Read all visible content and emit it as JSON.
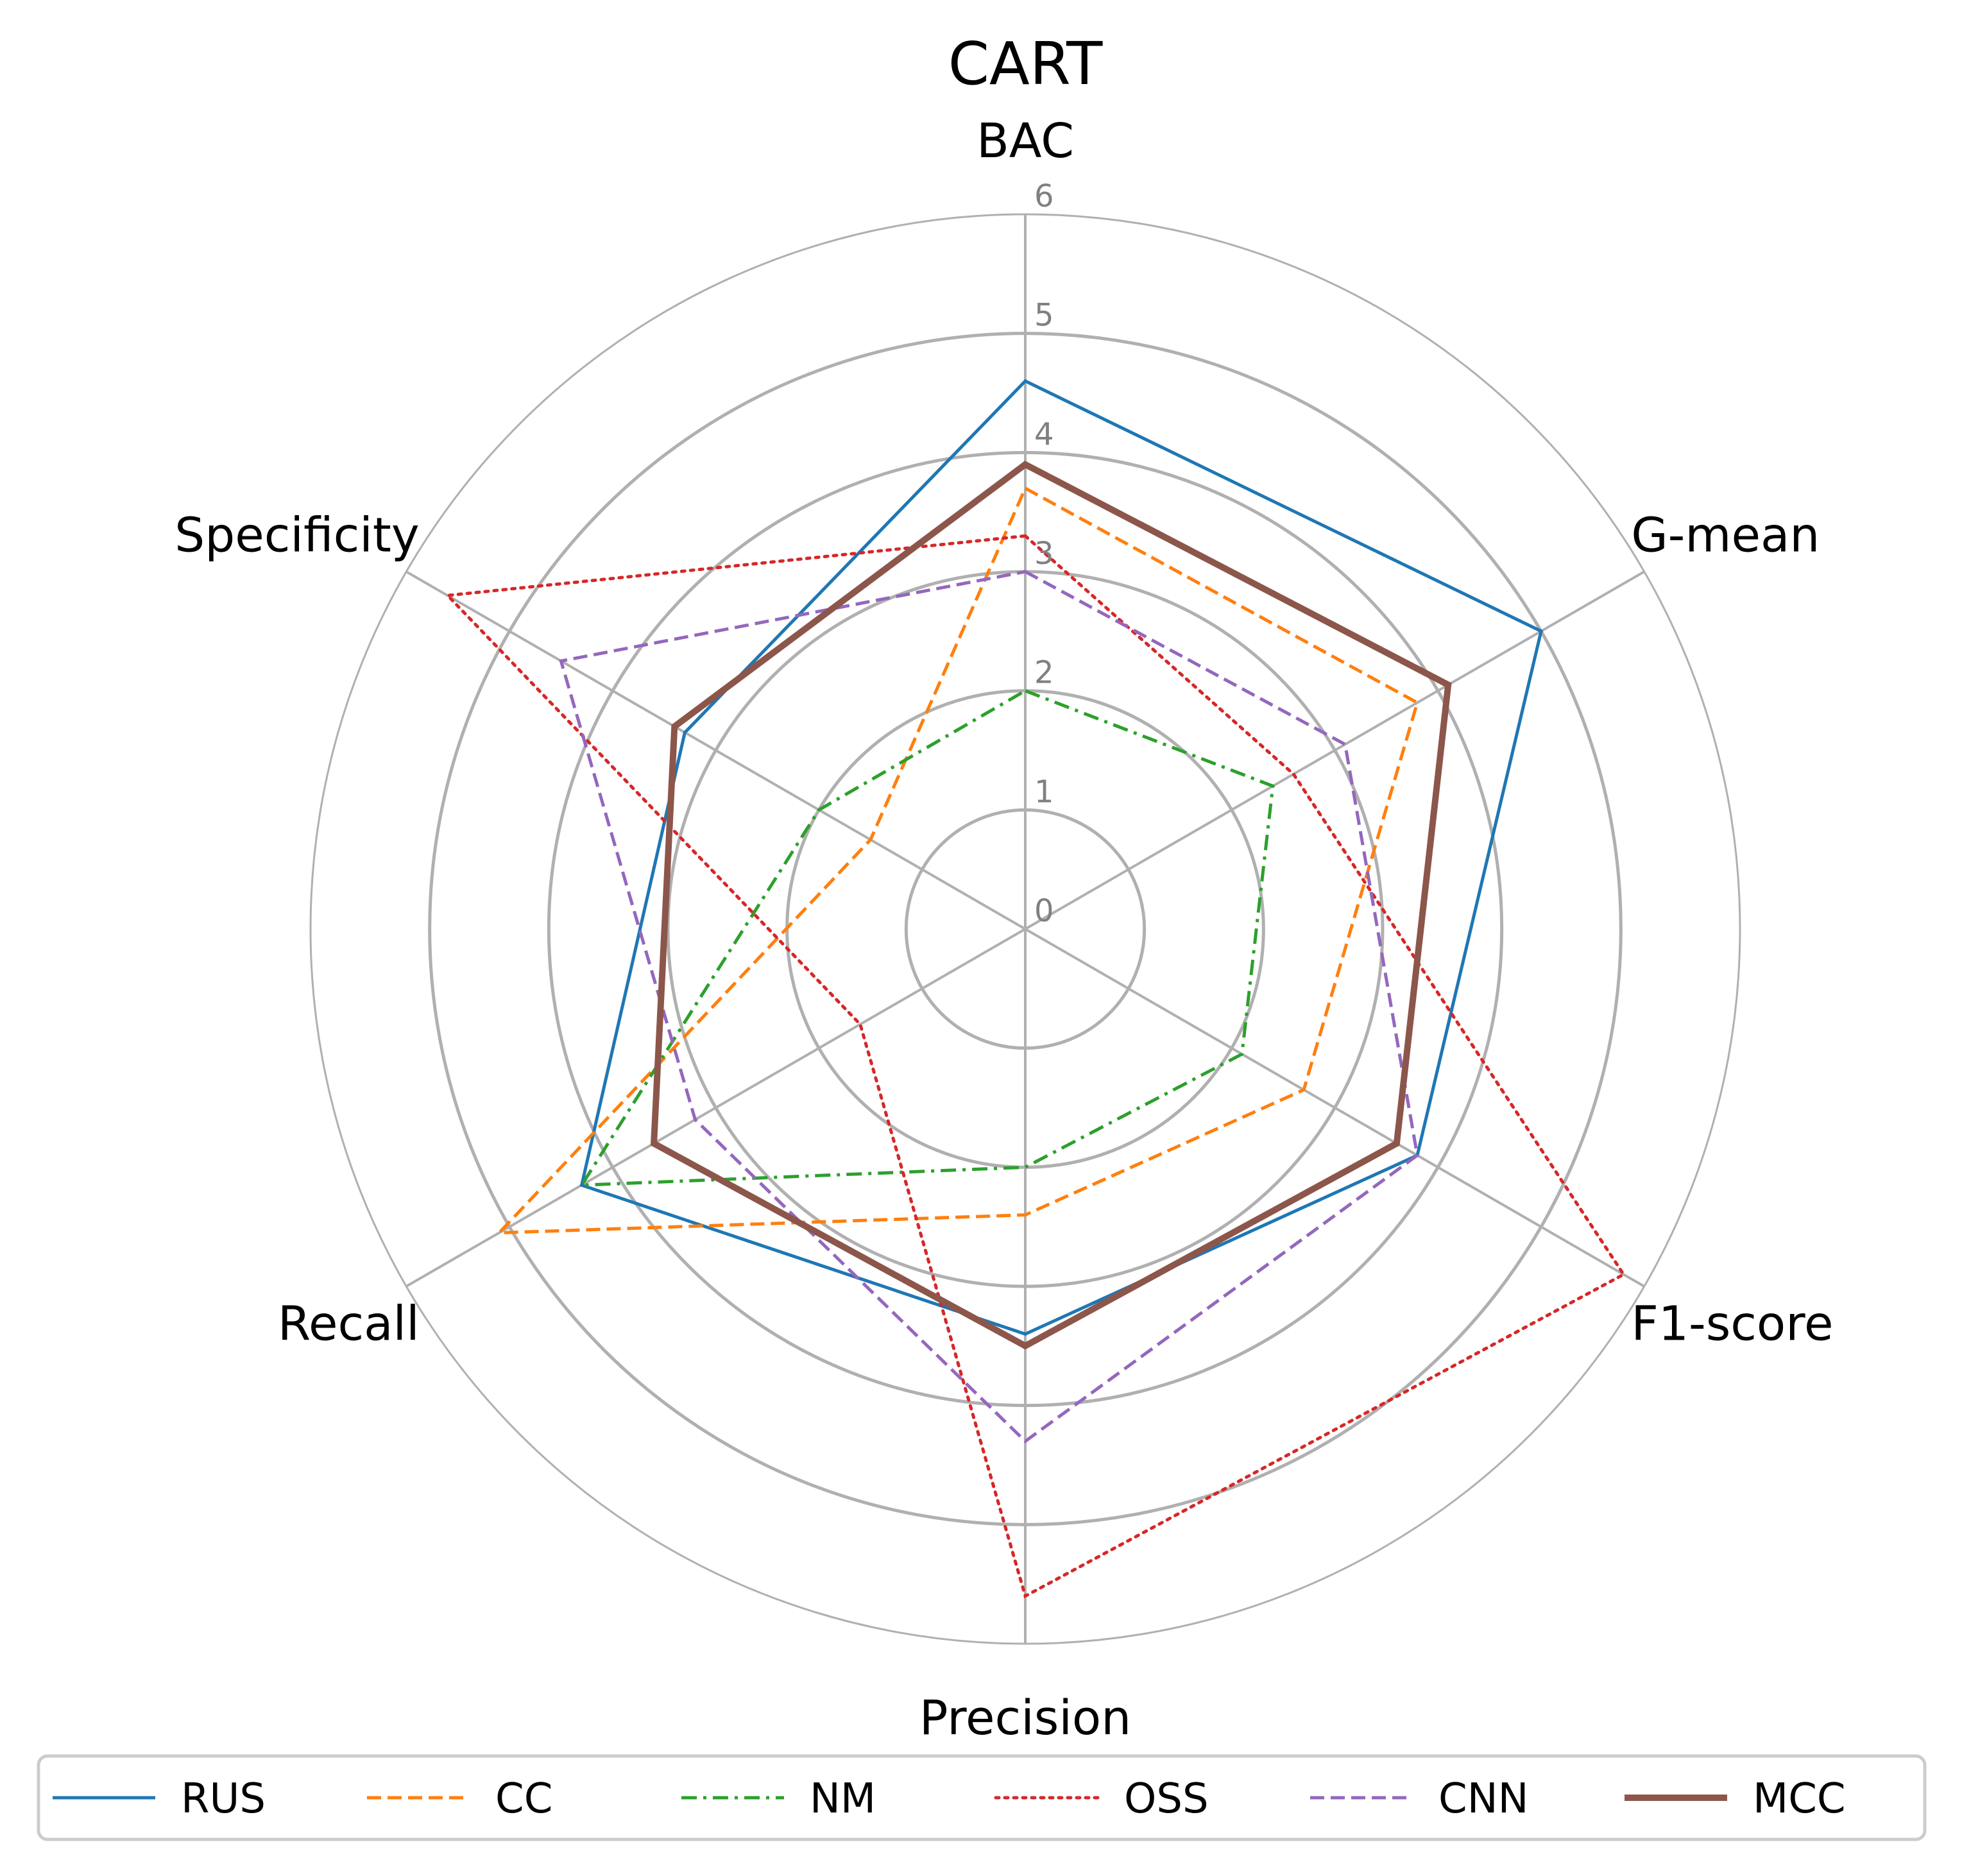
{
  "chart_data": {
    "type": "radar",
    "title": "CART",
    "axes": [
      "BAC",
      "G-mean",
      "F1-score",
      "Precision",
      "Recall",
      "Specificity"
    ],
    "rticks": [
      "0",
      "1",
      "2",
      "3",
      "4",
      "5",
      "6"
    ],
    "rlim": [
      0,
      6
    ],
    "grid": true,
    "legend": "bottom",
    "series": [
      {
        "name": "RUS",
        "values": [
          4.6,
          5.0,
          3.8,
          3.4,
          4.3,
          3.3
        ],
        "color": "#1f77b4",
        "dash": "solid",
        "width": 5
      },
      {
        "name": "CC",
        "values": [
          3.7,
          3.8,
          2.7,
          2.4,
          5.1,
          1.5
        ],
        "color": "#ff7f0e",
        "dash": "dashed",
        "width": 5
      },
      {
        "name": "NM",
        "values": [
          2.0,
          2.4,
          2.1,
          2.0,
          4.3,
          2.0
        ],
        "color": "#2ca02c",
        "dash": "dashdot",
        "width": 5
      },
      {
        "name": "OSS",
        "values": [
          3.3,
          2.6,
          5.8,
          5.6,
          1.6,
          5.6
        ],
        "color": "#d62728",
        "dash": "dotted",
        "width": 5
      },
      {
        "name": "CNN",
        "values": [
          3.0,
          3.1,
          3.8,
          4.3,
          3.2,
          4.5
        ],
        "color": "#9467bd",
        "dash": "dashed",
        "width": 5
      },
      {
        "name": "MCC",
        "values": [
          3.9,
          4.1,
          3.6,
          3.5,
          3.6,
          3.4
        ],
        "color": "#8c564b",
        "dash": "solid",
        "width": 10
      }
    ]
  }
}
